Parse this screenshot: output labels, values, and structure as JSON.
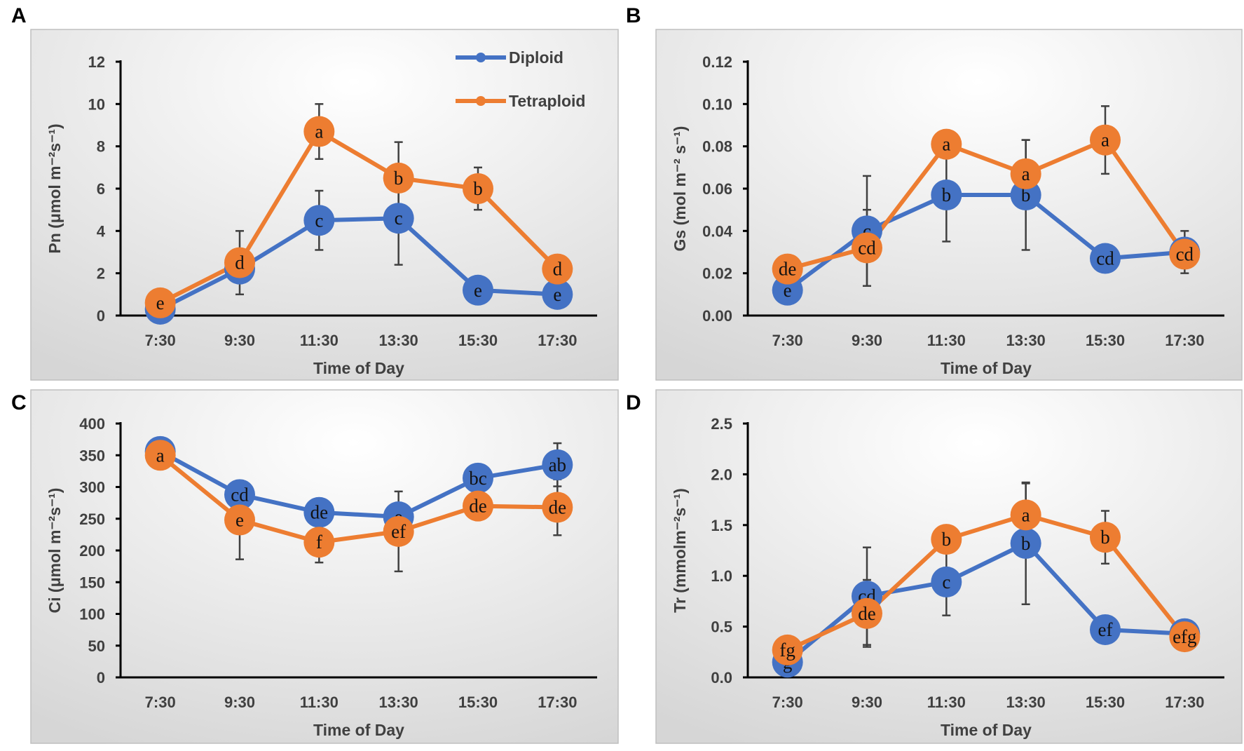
{
  "colors": {
    "diploid": "#4472C4",
    "tetraploid": "#ED7D31",
    "error_bar": "#404040",
    "axis": "#000000"
  },
  "chart_data": [
    {
      "panel": "A",
      "type": "line",
      "xlabel": "Time of Day",
      "ylabel": "Pn (μmol m⁻²s⁻¹)",
      "categories": [
        "7:30",
        "9:30",
        "11:30",
        "13:30",
        "15:30",
        "17:30"
      ],
      "ylim": [
        0,
        12
      ],
      "ystep": 2,
      "ydecimals": 0,
      "legend": {
        "position": "top-right",
        "entries": [
          "Diploid",
          "Tetraploid"
        ]
      },
      "series": [
        {
          "name": "Diploid",
          "values": [
            0.3,
            2.2,
            4.5,
            4.6,
            1.2,
            1.0
          ],
          "errors": [
            0,
            0,
            1.4,
            2.2,
            0,
            0
          ],
          "letters": [
            "e",
            "d",
            "c",
            "c",
            "e",
            "e"
          ]
        },
        {
          "name": "Tetraploid",
          "values": [
            0.6,
            2.5,
            8.7,
            6.5,
            6.0,
            2.2
          ],
          "errors": [
            0,
            1.5,
            1.3,
            1.7,
            1.0,
            0
          ],
          "letters": [
            "e",
            "d",
            "a",
            "b",
            "b",
            "d"
          ]
        }
      ]
    },
    {
      "panel": "B",
      "type": "line",
      "xlabel": "Time of Day",
      "ylabel": "Gs (mol m⁻² s⁻¹)",
      "categories": [
        "7:30",
        "9:30",
        "11:30",
        "13:30",
        "15:30",
        "17:30"
      ],
      "ylim": [
        0,
        0.12
      ],
      "ystep": 0.02,
      "ydecimals": 2,
      "series": [
        {
          "name": "Diploid",
          "values": [
            0.012,
            0.04,
            0.057,
            0.057,
            0.027,
            0.03
          ],
          "errors": [
            0,
            0.026,
            0.022,
            0.026,
            0,
            0.01
          ],
          "letters": [
            "e",
            "c",
            "b",
            "b",
            "cd",
            "cd"
          ]
        },
        {
          "name": "Tetraploid",
          "values": [
            0.022,
            0.032,
            0.081,
            0.067,
            0.083,
            0.029
          ],
          "errors": [
            0,
            0.018,
            0,
            0.016,
            0.016,
            0
          ],
          "letters": [
            "de",
            "cd",
            "a",
            "a",
            "a",
            "cd"
          ]
        }
      ]
    },
    {
      "panel": "C",
      "type": "line",
      "xlabel": "Time of Day",
      "ylabel": "Ci (μmol m⁻²s⁻¹)",
      "categories": [
        "7:30",
        "9:30",
        "11:30",
        "13:30",
        "15:30",
        "17:30"
      ],
      "ylim": [
        0,
        400
      ],
      "ystep": 50,
      "ydecimals": 0,
      "series": [
        {
          "name": "Diploid",
          "values": [
            356,
            288,
            260,
            253,
            314,
            335
          ],
          "errors": [
            0,
            0,
            0,
            0,
            0,
            34
          ],
          "letters": [
            "a",
            "cd",
            "de",
            "e",
            "bc",
            "ab"
          ]
        },
        {
          "name": "Tetraploid",
          "values": [
            350,
            248,
            213,
            230,
            270,
            268
          ],
          "errors": [
            0,
            62,
            32,
            63,
            0,
            44
          ],
          "letters": [
            "a",
            "e",
            "f",
            "ef",
            "de",
            "de"
          ]
        }
      ]
    },
    {
      "panel": "D",
      "type": "line",
      "xlabel": "Time of Day",
      "ylabel": "Tr (mmolm⁻²s⁻¹)",
      "categories": [
        "7:30",
        "9:30",
        "11:30",
        "13:30",
        "15:30",
        "17:30"
      ],
      "ylim": [
        0,
        2.5
      ],
      "ystep": 0.5,
      "ydecimals": 1,
      "series": [
        {
          "name": "Diploid",
          "values": [
            0.15,
            0.8,
            0.94,
            1.32,
            0.47,
            0.43
          ],
          "errors": [
            0,
            0.48,
            0.33,
            0.6,
            0,
            0
          ],
          "letters": [
            "g",
            "cd",
            "c",
            "b",
            "ef",
            "efg"
          ]
        },
        {
          "name": "Tetraploid",
          "values": [
            0.27,
            0.63,
            1.36,
            1.6,
            1.38,
            0.4
          ],
          "errors": [
            0,
            0.33,
            0,
            0.31,
            0.26,
            0
          ],
          "letters": [
            "fg",
            "de",
            "b",
            "a",
            "b",
            "efg"
          ]
        }
      ]
    }
  ]
}
